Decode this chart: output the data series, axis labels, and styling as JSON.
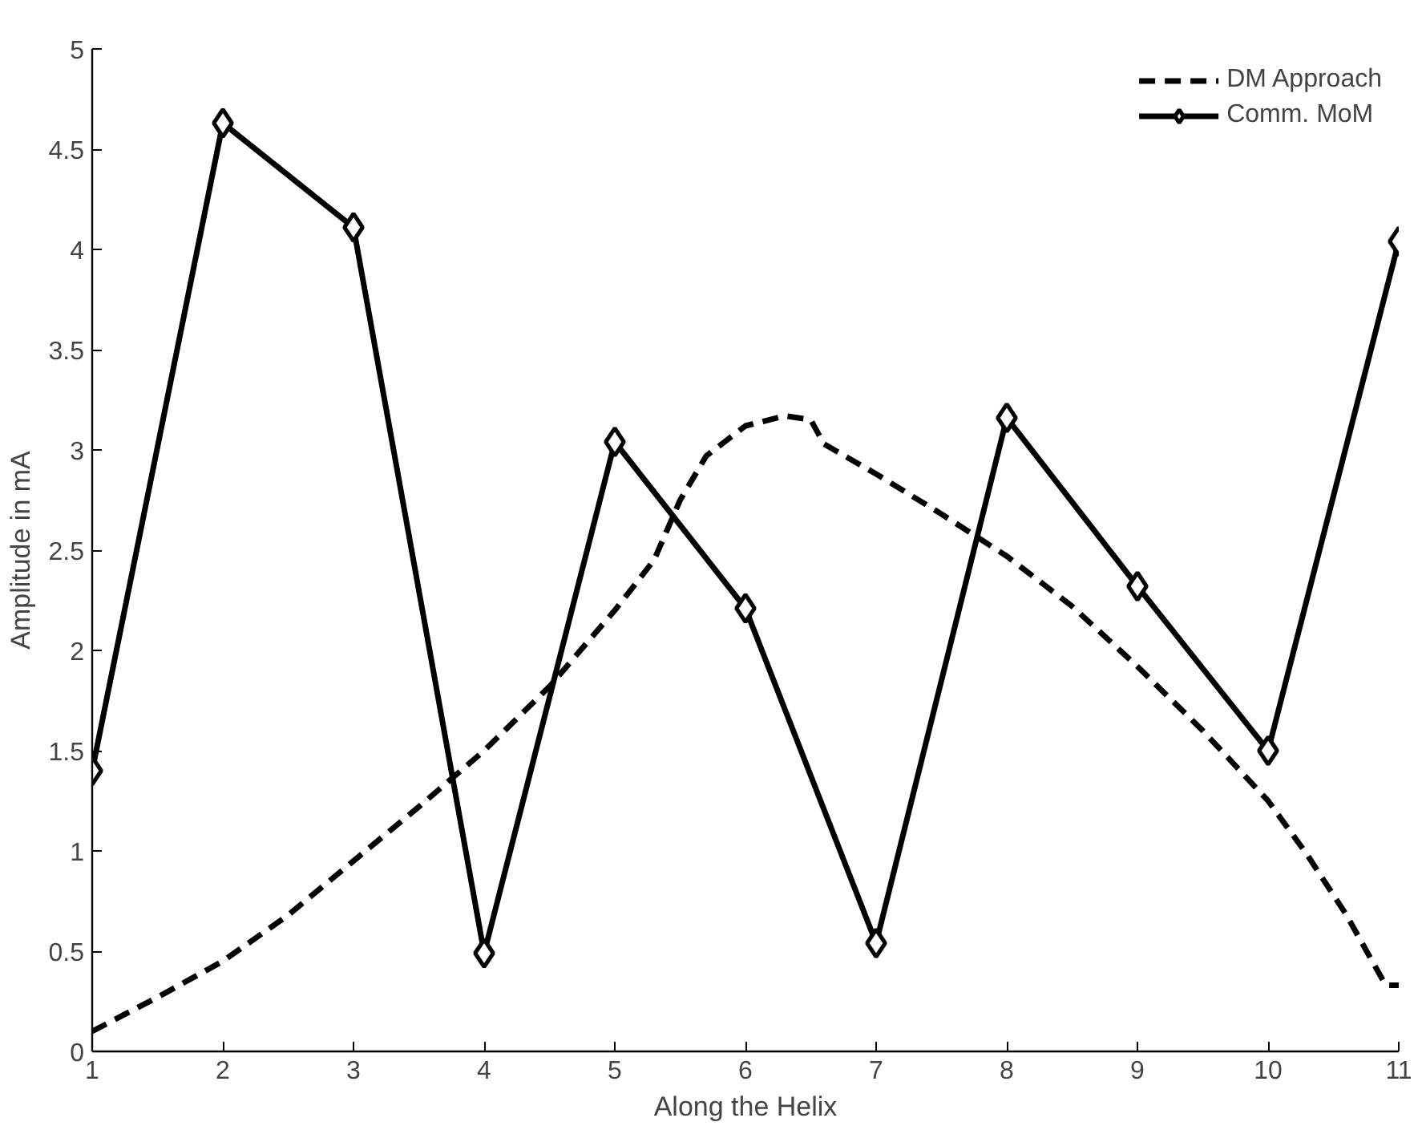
{
  "chart_data": {
    "type": "line",
    "xlabel": "Along the Helix",
    "ylabel": "Amplitude in mA",
    "xlim": [
      1,
      11
    ],
    "ylim": [
      0,
      5
    ],
    "xticks": [
      1,
      2,
      3,
      4,
      5,
      6,
      7,
      8,
      9,
      10,
      11
    ],
    "yticks": [
      0,
      0.5,
      1,
      1.5,
      2,
      2.5,
      3,
      3.5,
      4,
      4.5,
      5
    ],
    "grid": false,
    "legend": "top right",
    "series": [
      {
        "name": "DM Approach",
        "color": "#000000",
        "line_style": "dashed",
        "marker": "none",
        "x": [
          1,
          1.5,
          2,
          2.5,
          3,
          3.5,
          4,
          4.5,
          5,
          5.3,
          5.5,
          5.7,
          6,
          6.3,
          6.5,
          6.6,
          7,
          7.5,
          8,
          8.5,
          9,
          9.5,
          10,
          10.3,
          10.6,
          10.9,
          11
        ],
        "values": [
          0.1,
          0.27,
          0.45,
          0.68,
          0.95,
          1.22,
          1.5,
          1.82,
          2.2,
          2.45,
          2.75,
          2.97,
          3.12,
          3.17,
          3.15,
          3.03,
          2.88,
          2.68,
          2.47,
          2.22,
          1.92,
          1.6,
          1.25,
          0.98,
          0.68,
          0.33,
          0.33
        ]
      },
      {
        "name": "Comm. MoM",
        "color": "#000000",
        "line_style": "solid",
        "marker": "diamond",
        "x": [
          1,
          2,
          3,
          4,
          5,
          6,
          7,
          8,
          9,
          10,
          11
        ],
        "values": [
          1.4,
          4.63,
          4.11,
          0.49,
          3.04,
          2.21,
          0.54,
          3.16,
          2.32,
          1.5,
          4.04
        ]
      }
    ]
  }
}
